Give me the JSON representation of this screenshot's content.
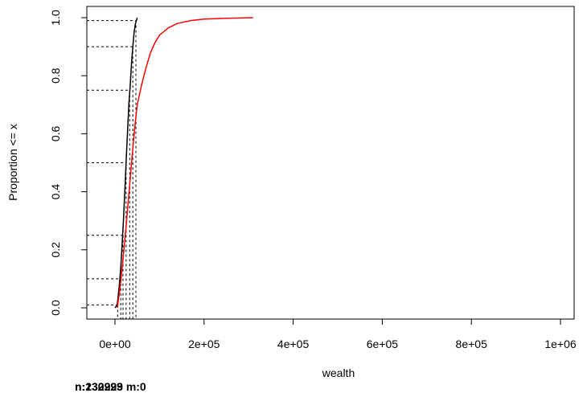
{
  "chart_data": {
    "type": "line",
    "title": "",
    "xlabel": "wealth",
    "ylabel": "Proportion <= x",
    "xlim": [
      0,
      1000000
    ],
    "ylim": [
      0,
      1
    ],
    "x_ticks": [
      0,
      200000,
      400000,
      600000,
      800000,
      1000000
    ],
    "x_tick_labels": [
      "0e+00",
      "2e+05",
      "4e+05",
      "6e+05",
      "8e+05",
      "1e+06"
    ],
    "y_ticks": [
      0,
      0.2,
      0.4,
      0.6,
      0.8,
      1.0
    ],
    "y_tick_labels": [
      "0.0",
      "0.2",
      "0.4",
      "0.6",
      "0.8",
      "1.0"
    ],
    "grid": false,
    "legend": "none",
    "series": [
      {
        "color": "#000000",
        "x": [
          0,
          5000,
          10000,
          13000,
          16000,
          19000,
          22000,
          25000,
          28000,
          31000,
          34000,
          37000,
          40000,
          43000,
          46000,
          50000
        ],
        "y": [
          0.0,
          0.01,
          0.08,
          0.14,
          0.22,
          0.3,
          0.4,
          0.5,
          0.6,
          0.7,
          0.76,
          0.84,
          0.9,
          0.95,
          0.98,
          1.0
        ]
      },
      {
        "color": "#ff0000",
        "x": [
          5000,
          10000,
          15000,
          20000,
          25000,
          30000,
          35000,
          40000,
          45000,
          50000,
          60000,
          70000,
          80000,
          90000,
          100000,
          120000,
          140000,
          170000,
          200000,
          250000,
          310000
        ],
        "y": [
          0.0,
          0.05,
          0.12,
          0.2,
          0.28,
          0.37,
          0.46,
          0.55,
          0.63,
          0.7,
          0.77,
          0.83,
          0.88,
          0.915,
          0.94,
          0.965,
          0.98,
          0.99,
          0.995,
          0.998,
          1.0
        ]
      }
    ],
    "quantile_guides": [
      {
        "prob": 0.01,
        "x": 6000
      },
      {
        "prob": 0.1,
        "x": 13000
      },
      {
        "prob": 0.25,
        "x": 18000
      },
      {
        "prob": 0.5,
        "x": 25000
      },
      {
        "prob": 0.75,
        "x": 33000
      },
      {
        "prob": 0.9,
        "x": 40000
      },
      {
        "prob": 0.99,
        "x": 47000
      }
    ],
    "footnotes": [
      "n:230293",
      "n:132929 m:0"
    ]
  }
}
